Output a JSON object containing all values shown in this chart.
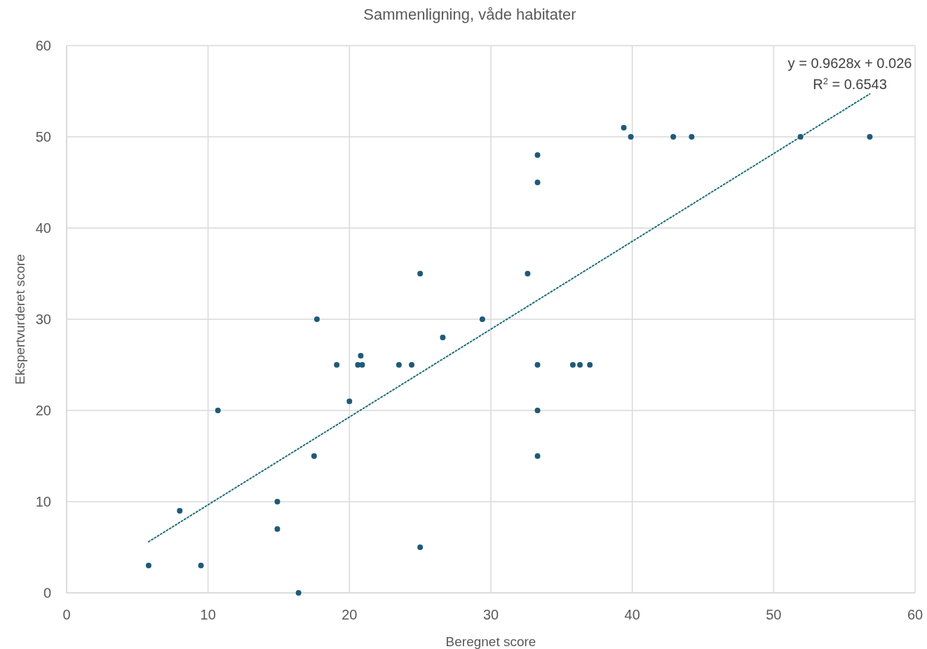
{
  "chart_data": {
    "type": "scatter",
    "title": "Sammenligning, våde habitater",
    "xlabel": "Beregnet score",
    "ylabel": "Ekspertvurderet score",
    "xlim": [
      0,
      60
    ],
    "ylim": [
      0,
      60
    ],
    "xticks": [
      0,
      10,
      20,
      30,
      40,
      50,
      60
    ],
    "yticks": [
      0,
      10,
      20,
      30,
      40,
      50,
      60
    ],
    "grid": true,
    "annotations": [
      "y = 0.9628x + 0.026",
      "R$^{2}$ = 0.6543"
    ],
    "series": [
      {
        "color": "#1f5a78",
        "marker": "circle",
        "x": [
          5.8,
          8.0,
          9.5,
          10.7,
          14.9,
          14.9,
          16.4,
          17.5,
          17.7,
          19.1,
          20.0,
          20.6,
          20.8,
          20.9,
          23.5,
          24.4,
          25.0,
          25.0,
          26.6,
          29.4,
          32.6,
          33.3,
          33.3,
          33.3,
          33.3,
          33.3,
          35.8,
          36.3,
          37.0,
          39.4,
          39.9,
          42.9,
          44.2,
          51.9,
          56.8
        ],
        "values": [
          3,
          9,
          3,
          20,
          10,
          7,
          0,
          15,
          30,
          25,
          21,
          25,
          26,
          25,
          25,
          25,
          35,
          5,
          28,
          30,
          35,
          48,
          45,
          25,
          20,
          15,
          25,
          25,
          25,
          51,
          50,
          50,
          50,
          50,
          50
        ]
      },
      {
        "type": "line",
        "color": "#1f6e78",
        "line_style": "dotted",
        "marker": "none",
        "x": [
          5.8,
          56.8
        ],
        "values": [
          5.61,
          54.71
        ]
      }
    ]
  }
}
